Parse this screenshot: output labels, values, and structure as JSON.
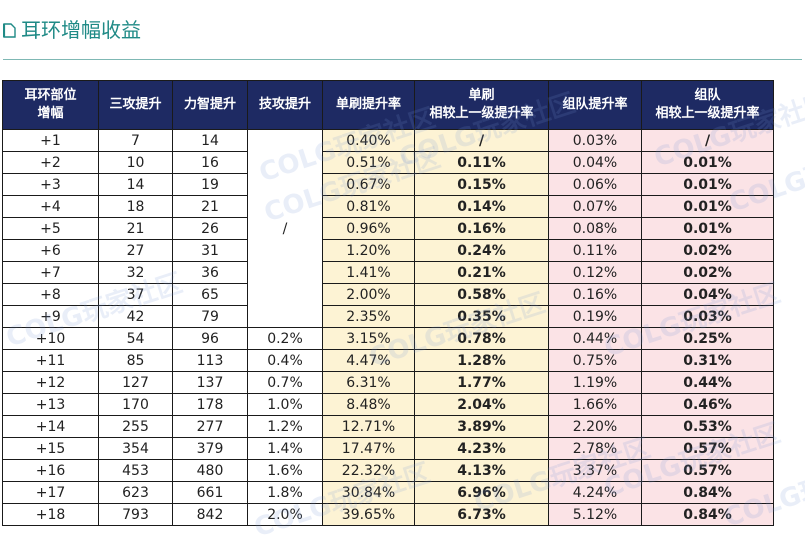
{
  "title": "耳环增幅收益",
  "watermark": "COLG玩家社区",
  "colors": {
    "header_bg": "#1e2a63",
    "title_teal": "#1f8a86",
    "yellow_band": "#fdf3d4",
    "pink_band": "#fbe3e6",
    "emphasis_red": "#c00000"
  },
  "headers": {
    "level": [
      "耳环部位",
      "增幅"
    ],
    "three_atk": "三攻提升",
    "str_int": "力智提升",
    "skill_atk": "技攻提升",
    "solo_rate": "单刷提升率",
    "solo_vs_prev": [
      "单刷",
      "相较上一级提升率"
    ],
    "team_rate": "组队提升率",
    "team_vs_prev": [
      "组队",
      "相较上一级提升率"
    ]
  },
  "skill_merged": "/",
  "rows": [
    {
      "level": "+1",
      "three_atk": "7",
      "str_int": "14",
      "skill_atk": "",
      "solo_rate": "0.40%",
      "solo_vs_prev": "/",
      "team_rate": "0.03%",
      "team_vs_prev": "/"
    },
    {
      "level": "+2",
      "three_atk": "10",
      "str_int": "16",
      "skill_atk": "",
      "solo_rate": "0.51%",
      "solo_vs_prev": "0.11%",
      "team_rate": "0.04%",
      "team_vs_prev": "0.01%"
    },
    {
      "level": "+3",
      "three_atk": "14",
      "str_int": "19",
      "skill_atk": "",
      "solo_rate": "0.67%",
      "solo_vs_prev": "0.15%",
      "team_rate": "0.06%",
      "team_vs_prev": "0.01%"
    },
    {
      "level": "+4",
      "three_atk": "18",
      "str_int": "21",
      "skill_atk": "",
      "solo_rate": "0.81%",
      "solo_vs_prev": "0.14%",
      "team_rate": "0.07%",
      "team_vs_prev": "0.01%"
    },
    {
      "level": "+5",
      "three_atk": "21",
      "str_int": "26",
      "skill_atk": "",
      "solo_rate": "0.96%",
      "solo_vs_prev": "0.16%",
      "team_rate": "0.08%",
      "team_vs_prev": "0.01%"
    },
    {
      "level": "+6",
      "three_atk": "27",
      "str_int": "31",
      "skill_atk": "",
      "solo_rate": "1.20%",
      "solo_vs_prev": "0.24%",
      "team_rate": "0.11%",
      "team_vs_prev": "0.02%"
    },
    {
      "level": "+7",
      "three_atk": "32",
      "str_int": "36",
      "skill_atk": "",
      "solo_rate": "1.41%",
      "solo_vs_prev": "0.21%",
      "team_rate": "0.12%",
      "team_vs_prev": "0.02%"
    },
    {
      "level": "+8",
      "three_atk": "37",
      "str_int": "65",
      "skill_atk": "",
      "solo_rate": "2.00%",
      "solo_vs_prev": "0.58%",
      "team_rate": "0.16%",
      "team_vs_prev": "0.04%"
    },
    {
      "level": "+9",
      "three_atk": "42",
      "str_int": "79",
      "skill_atk": "",
      "solo_rate": "2.35%",
      "solo_vs_prev": "0.35%",
      "team_rate": "0.19%",
      "team_vs_prev": "0.03%"
    },
    {
      "level": "+10",
      "three_atk": "54",
      "str_int": "96",
      "skill_atk": "0.2%",
      "solo_rate": "3.15%",
      "solo_vs_prev": "0.78%",
      "team_rate": "0.44%",
      "team_vs_prev": "0.25%"
    },
    {
      "level": "+11",
      "three_atk": "85",
      "str_int": "113",
      "skill_atk": "0.4%",
      "solo_rate": "4.47%",
      "solo_vs_prev": "1.28%",
      "team_rate": "0.75%",
      "team_vs_prev": "0.31%"
    },
    {
      "level": "+12",
      "three_atk": "127",
      "str_int": "137",
      "skill_atk": "0.7%",
      "solo_rate": "6.31%",
      "solo_vs_prev": "1.77%",
      "team_rate": "1.19%",
      "team_vs_prev": "0.44%"
    },
    {
      "level": "+13",
      "three_atk": "170",
      "str_int": "178",
      "skill_atk": "1.0%",
      "solo_rate": "8.48%",
      "solo_vs_prev": "2.04%",
      "team_rate": "1.66%",
      "team_vs_prev": "0.46%"
    },
    {
      "level": "+14",
      "three_atk": "255",
      "str_int": "277",
      "skill_atk": "1.2%",
      "solo_rate": "12.71%",
      "solo_vs_prev": "3.89%",
      "team_rate": "2.20%",
      "team_vs_prev": "0.53%"
    },
    {
      "level": "+15",
      "three_atk": "354",
      "str_int": "379",
      "skill_atk": "1.4%",
      "solo_rate": "17.47%",
      "solo_vs_prev": "4.23%",
      "team_rate": "2.78%",
      "team_vs_prev": "0.57%"
    },
    {
      "level": "+16",
      "three_atk": "453",
      "str_int": "480",
      "skill_atk": "1.6%",
      "solo_rate": "22.32%",
      "solo_vs_prev": "4.13%",
      "team_rate": "3.37%",
      "team_vs_prev": "0.57%"
    },
    {
      "level": "+17",
      "three_atk": "623",
      "str_int": "661",
      "skill_atk": "1.8%",
      "solo_rate": "30.84%",
      "solo_vs_prev": "6.96%",
      "team_rate": "4.24%",
      "team_vs_prev": "0.84%"
    },
    {
      "level": "+18",
      "three_atk": "793",
      "str_int": "842",
      "skill_atk": "2.0%",
      "solo_rate": "39.65%",
      "solo_vs_prev": "6.73%",
      "team_rate": "5.12%",
      "team_vs_prev": "0.84%"
    }
  ]
}
